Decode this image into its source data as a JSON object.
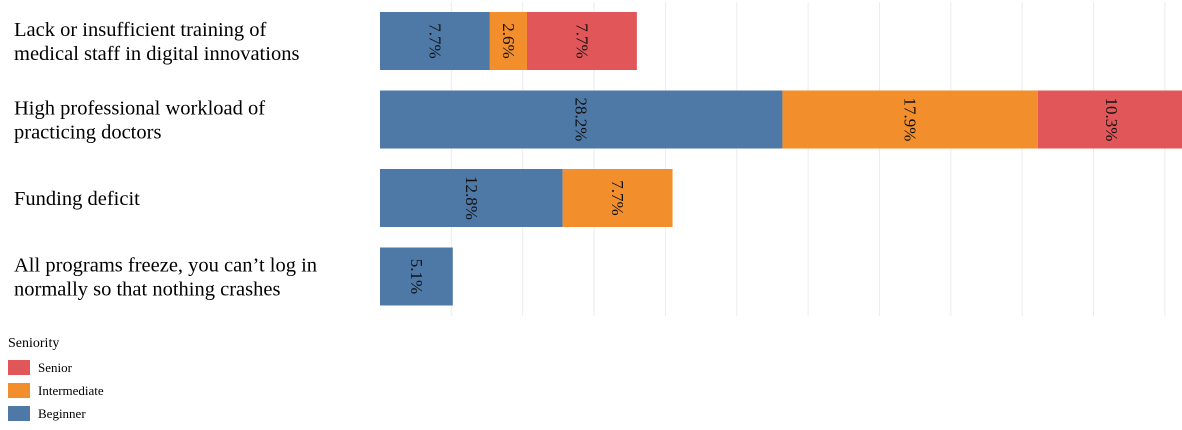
{
  "chart_data": {
    "type": "bar",
    "orientation": "horizontal",
    "stacked": true,
    "categories": [
      [
        "Lack or insufficient training of",
        "medical staff in digital innovations"
      ],
      [
        "High professional workload of",
        "practicing doctors"
      ],
      [
        "Funding deficit"
      ],
      [
        "All programs freeze, you can’t log in",
        "normally so that nothing crashes"
      ]
    ],
    "series": [
      {
        "name": "Beginner",
        "color": "#4e79a7",
        "values": [
          7.7,
          28.2,
          12.8,
          5.1
        ],
        "labels": [
          "7.7%",
          "28.2%",
          "12.8%",
          "5.1%"
        ]
      },
      {
        "name": "Intermediate",
        "color": "#f28e2b",
        "values": [
          2.6,
          17.9,
          7.7,
          0
        ],
        "labels": [
          "2.6%",
          "17.9%",
          "7.7%",
          ""
        ]
      },
      {
        "name": "Senior",
        "color": "#e15759",
        "values": [
          7.7,
          10.3,
          0,
          0
        ],
        "labels": [
          "7.7%",
          "10.3%",
          "",
          ""
        ]
      }
    ],
    "xlim": [
      0,
      56.2
    ],
    "grid": true,
    "legend": {
      "title": "Seniority",
      "placement": "bottom-left",
      "order": [
        "Senior",
        "Intermediate",
        "Beginner"
      ]
    }
  }
}
